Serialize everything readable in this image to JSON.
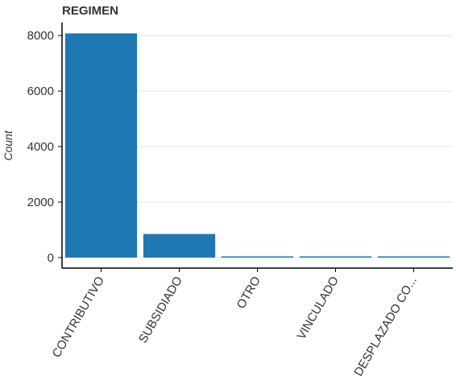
{
  "chart_data": {
    "type": "bar",
    "title": "REGIMEN",
    "xlabel": "",
    "ylabel": "Count",
    "categories": [
      "CONTRIBUTIVO",
      "SUBSIDIADO",
      "OTRO",
      "VINCULADO",
      "DESPLAZADO CO..."
    ],
    "values": [
      8080,
      850,
      40,
      20,
      15
    ],
    "ylim": [
      -380,
      8470
    ],
    "yticks": [
      0,
      2000,
      4000,
      6000,
      8000
    ],
    "ytick_labels": [
      "0",
      "2000",
      "4000",
      "6000",
      "8000"
    ],
    "grid": true,
    "bar_color": "#1f77b4"
  }
}
